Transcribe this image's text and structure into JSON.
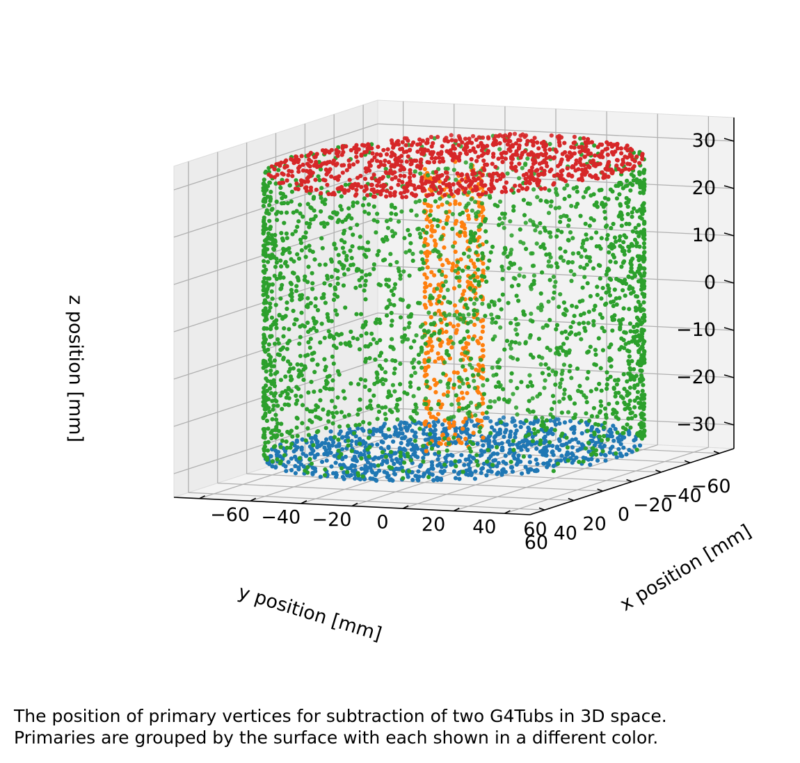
{
  "chart_data": {
    "type": "scatter",
    "projection": "3d",
    "title": "",
    "xlabel": "x position [mm]",
    "ylabel": "y position [mm]",
    "zlabel": "z position [mm]",
    "xlim": [
      -70,
      70
    ],
    "ylim": [
      -70,
      70
    ],
    "zlim": [
      -35,
      35
    ],
    "x_ticks": [
      -60,
      -40,
      -20,
      0,
      20,
      40,
      60
    ],
    "y_ticks": [
      -60,
      -40,
      -20,
      0,
      20,
      40,
      60
    ],
    "z_ticks": [
      -30,
      -20,
      -10,
      0,
      10,
      20,
      30
    ],
    "grid": true,
    "legend": false,
    "series": [
      {
        "surface": "bottom face (z = -30, 10 < r < 65)",
        "color": "#1f77b4",
        "shape": "annulus",
        "z": -30,
        "r_min": 10,
        "r_max": 65,
        "points": 900
      },
      {
        "surface": "inner cylinder (r = 10, -30 < z < 30)",
        "color": "#ff7f0e",
        "shape": "cylinder",
        "r": 10,
        "z_min": -30,
        "z_max": 30,
        "points": 420
      },
      {
        "surface": "outer cylinder (r = 65, -30 < z < 30)",
        "color": "#2ca02c",
        "shape": "cylinder",
        "r": 65,
        "z_min": -30,
        "z_max": 30,
        "points": 2300
      },
      {
        "surface": "top face (z = 30, 10 < r < 65)",
        "color": "#d62728",
        "shape": "annulus",
        "z": 30,
        "r_min": 10,
        "r_max": 65,
        "points": 900
      }
    ]
  },
  "caption": {
    "line1": "The position of primary vertices for subtraction of two G4Tubs in 3D space.",
    "line2": "Primaries are grouped by the surface with each shown in a different color."
  }
}
